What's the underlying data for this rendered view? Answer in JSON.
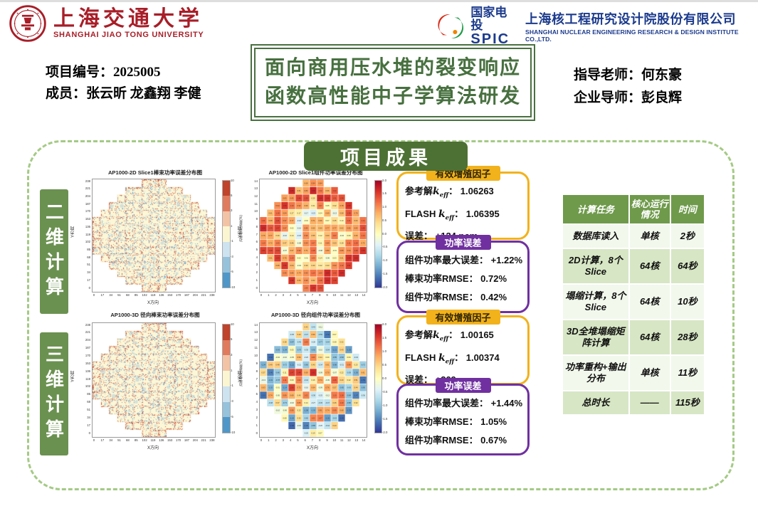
{
  "header": {
    "sjtu": {
      "name_zh": "上海交通大学",
      "name_en": "SHANGHAI JIAO TONG UNIVERSITY",
      "color": "#a81e28"
    },
    "spic": {
      "brand_zh": "国家电投",
      "brand_en": "SPIC",
      "company_zh": "上海核工程研究设计院股份有限公司",
      "company_en": "SHANGHAI NUCLEAR ENGINEERING RESEARCH & DESIGN INSTITUTE CO.,LTD.",
      "color": "#1c3b8d"
    }
  },
  "info": {
    "project_label": "项目编号：",
    "project_no": "2025005",
    "members_label": "成员：",
    "members": "张云昕 龙鑫翔 李健",
    "advisor_label": "指导老师：",
    "advisor": "何东豪",
    "mentor_label": "企业导师：",
    "mentor": "彭良辉"
  },
  "title": {
    "line1": "面向商用压水堆的裂变响应",
    "line2": "函数高性能中子学算法研发",
    "color": "#47703f"
  },
  "results_section": {
    "header": "项目成果",
    "label_2d": "二维计算",
    "label_3d": "三维计算"
  },
  "result_boxes": [
    {
      "kind": "keff",
      "accent": "#f2b21c",
      "header": "有效增殖因子",
      "rows": [
        {
          "pre": "参考解",
          "kvar": "k",
          "ksub": "eff",
          "tail": "： 1.06263"
        },
        {
          "pre": "FLASH ",
          "kvar": "k",
          "ksub": "eff",
          "tail": "： 1.06395"
        },
        {
          "pre": "误差",
          "tail": "： +124 pcm"
        }
      ]
    },
    {
      "kind": "power",
      "accent": "#7030a0",
      "header": "功率误差",
      "rows": [
        {
          "pre": "组件功率最大误差",
          "tail": "： +1.22%"
        },
        {
          "pre": "棒束功率RMSE",
          "tail": "： 0.72%"
        },
        {
          "pre": "组件功率RMSE",
          "tail": "： 0.42%"
        }
      ]
    },
    {
      "kind": "keff",
      "accent": "#f2b21c",
      "header": "有效增殖因子",
      "rows": [
        {
          "pre": "参考解",
          "kvar": "k",
          "ksub": "eff",
          "tail": "： 1.00165"
        },
        {
          "pre": "FLASH ",
          "kvar": "k",
          "ksub": "eff",
          "tail": "： 1.00374"
        },
        {
          "pre": "误差",
          "tail": "： +209 pcm"
        }
      ]
    },
    {
      "kind": "power",
      "accent": "#7030a0",
      "header": "功率误差",
      "rows": [
        {
          "pre": "组件功率最大误差",
          "tail": "： +1.44%"
        },
        {
          "pre": "棒束功率RMSE",
          "tail": "： 1.05%"
        },
        {
          "pre": "组件功率RMSE",
          "tail": "： 0.67%"
        }
      ]
    }
  ],
  "table": {
    "headers": [
      "计算任务",
      "核心运行情况",
      "时间"
    ],
    "rows": [
      [
        "数据库读入",
        "单核",
        "2秒"
      ],
      [
        "2D计算，8个Slice",
        "64核",
        "64秒"
      ],
      [
        "塌缩计算，8个Slice",
        "64核",
        "10秒"
      ],
      [
        "3D全堆塌缩矩阵计算",
        "64核",
        "28秒"
      ],
      [
        "功率重构+输出分布",
        "单核",
        "11秒"
      ],
      [
        "总时长",
        "——",
        "115秒"
      ]
    ],
    "header_bg": "#6f9a4b",
    "row_bg_a": "#f2f8ec",
    "row_bg_b": "#d7e6c4"
  },
  "chart_data": [
    {
      "type": "heatmap",
      "subtype": "pin",
      "title": "AP1000-2D Slice1棒束功率误差分布图",
      "xlabel": "X方向",
      "ylabel": "Y方向",
      "xticks": [
        0,
        17,
        34,
        51,
        68,
        85,
        102,
        119,
        136,
        153,
        170,
        187,
        204,
        221,
        238
      ],
      "yticks": [
        238,
        221,
        204,
        187,
        170,
        153,
        136,
        119,
        102,
        85,
        68,
        51,
        34,
        17,
        0
      ],
      "mask_rows": [
        3,
        7,
        9,
        11,
        13,
        15,
        15,
        15,
        15,
        15,
        13,
        11,
        9,
        7,
        3
      ],
      "values_summary": "pin-wise relative power error, mostly within ±1%, red/blue speckles of ±3~10% along assembly boundaries",
      "colorbar": {
        "style": "discrete",
        "ticks": [
          "10",
          "5",
          "3",
          "1",
          "-1",
          "-3",
          "-5",
          "-10"
        ],
        "colors": [
          "#c0432c",
          "#e07b5e",
          "#f3c3a6",
          "#fbf6d1",
          "#cee3f0",
          "#96c2dc",
          "#4f97c8"
        ],
        "label": "功率相对误差(%)"
      },
      "palette": {
        "base": "#fcf7d6",
        "warm": [
          "#c8503a",
          "#df7e5f",
          "#f2b091"
        ],
        "cool": [
          "#5f9dc8",
          "#8fbedd",
          "#c2dcec"
        ]
      },
      "seed": 11
    },
    {
      "type": "heatmap",
      "subtype": "assembly",
      "title": "AP1000-2D Slice1组件功率误差分布图",
      "xlabel": "X方向",
      "ylabel": "Y方向",
      "xticks": [
        0,
        1,
        2,
        3,
        4,
        5,
        6,
        7,
        8,
        9,
        10,
        11,
        12,
        13,
        14
      ],
      "yticks": [
        14,
        13,
        12,
        11,
        10,
        9,
        8,
        7,
        6,
        5,
        4,
        3,
        2,
        1,
        0
      ],
      "mask_rows": [
        3,
        7,
        9,
        11,
        13,
        15,
        15,
        15,
        15,
        15,
        13,
        11,
        9,
        7,
        3
      ],
      "values_summary": "assembly power error (%), mostly +0.2~+1.2, peripheral assemblies up to ~+1.5, max +1.22",
      "colorbar": {
        "style": "gradient",
        "ticks": [
          "2.0",
          "1.5",
          "1.0",
          "0.5",
          "0.0",
          "-0.5",
          "-1.0",
          "-1.5",
          "-2.0"
        ],
        "range": [
          -2,
          2
        ]
      },
      "bias": "warm",
      "seed": 23
    },
    {
      "type": "heatmap",
      "subtype": "pin",
      "title": "AP1000-3D 径向棒束功率误差分布图",
      "xlabel": "X方向",
      "ylabel": "Y方向",
      "xticks": [
        0,
        17,
        34,
        51,
        68,
        85,
        102,
        119,
        136,
        153,
        170,
        187,
        204,
        221,
        238
      ],
      "yticks": [
        238,
        221,
        204,
        187,
        170,
        153,
        136,
        119,
        102,
        85,
        68,
        51,
        34,
        17,
        0
      ],
      "mask_rows": [
        3,
        7,
        9,
        11,
        13,
        15,
        15,
        15,
        15,
        15,
        13,
        11,
        9,
        7,
        3
      ],
      "values_summary": "radially-integrated pin power error, mostly within ±1%, stronger red/blue speckles at assembly gaps",
      "colorbar": {
        "style": "discrete",
        "ticks": [
          "10",
          "5",
          "3",
          "1",
          "-1",
          "-3",
          "-5",
          "-10"
        ],
        "colors": [
          "#c0432c",
          "#e07b5e",
          "#f3c3a6",
          "#fbf6d1",
          "#cee3f0",
          "#96c2dc",
          "#4f97c8"
        ],
        "label": "功率相对误差(%)"
      },
      "palette": {
        "base": "#fcf7d6",
        "warm": [
          "#c8503a",
          "#df7e5f",
          "#f2b091"
        ],
        "cool": [
          "#5f9dc8",
          "#8fbedd",
          "#c2dcec"
        ]
      },
      "seed": 31
    },
    {
      "type": "heatmap",
      "subtype": "assembly",
      "title": "AP1000-3D 径向组件功率误差分布图",
      "xlabel": "X方向",
      "ylabel": "Y方向",
      "xticks": [
        0,
        1,
        2,
        3,
        4,
        5,
        6,
        7,
        8,
        9,
        10,
        11,
        12,
        13,
        14
      ],
      "yticks": [
        14,
        13,
        12,
        11,
        10,
        9,
        8,
        7,
        6,
        5,
        4,
        3,
        2,
        1,
        0
      ],
      "mask_rows": [
        3,
        7,
        9,
        11,
        13,
        15,
        15,
        15,
        15,
        15,
        13,
        11,
        9,
        7,
        3
      ],
      "values_summary": "assembly power error (%), mix of negative (blue) outer/top assemblies and positive (orange-red) central assemblies, max +1.44",
      "colorbar": {
        "style": "gradient",
        "ticks": [
          "2.0",
          "1.5",
          "1.0",
          "0.5",
          "0.0",
          "-0.5",
          "-1.0",
          "-1.5",
          "-2.0"
        ],
        "range": [
          -2,
          2
        ]
      },
      "bias": "mixed",
      "seed": 41
    }
  ]
}
